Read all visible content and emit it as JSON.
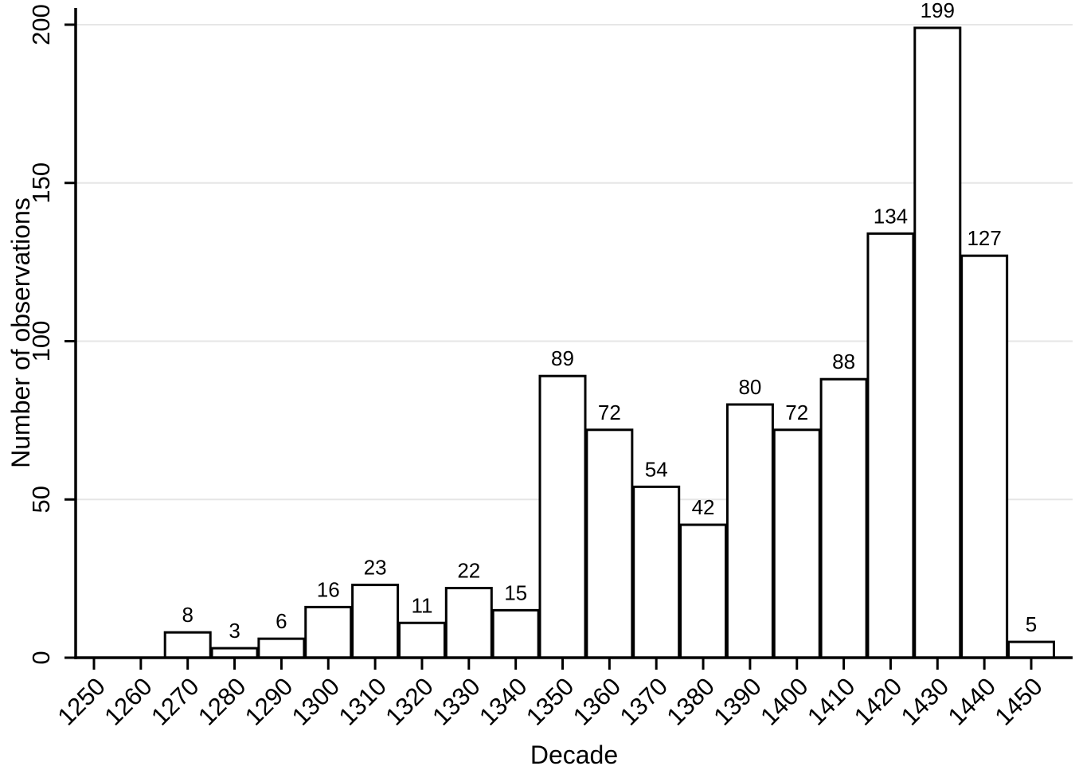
{
  "figure": {
    "background": "#ffffff"
  },
  "chart_data": {
    "type": "bar",
    "subtype": "histogram",
    "title": "",
    "xlabel": "Decade",
    "ylabel": "Number of observations",
    "categories": [
      "1250",
      "1260",
      "1270",
      "1280",
      "1290",
      "1300",
      "1310",
      "1320",
      "1330",
      "1340",
      "1350",
      "1360",
      "1370",
      "1380",
      "1390",
      "1400",
      "1410",
      "1420",
      "1430",
      "1440",
      "1450"
    ],
    "values": [
      0,
      0,
      8,
      3,
      6,
      16,
      23,
      11,
      22,
      15,
      89,
      72,
      54,
      42,
      80,
      72,
      88,
      134,
      199,
      127,
      5
    ],
    "bar_value_labels_shown": true,
    "ylim": [
      0,
      200
    ],
    "yticks": [
      0,
      50,
      100,
      150,
      200
    ],
    "grid": "horizontal",
    "legend_position": "none",
    "x_tick_label_angle_deg": 45,
    "y_tick_label_angle_deg": 90,
    "colors": {
      "bar_fill": "#ffffff",
      "bar_stroke": "#000000",
      "grid": "#e6e6e6",
      "axis": "#000000",
      "text": "#000000"
    }
  }
}
